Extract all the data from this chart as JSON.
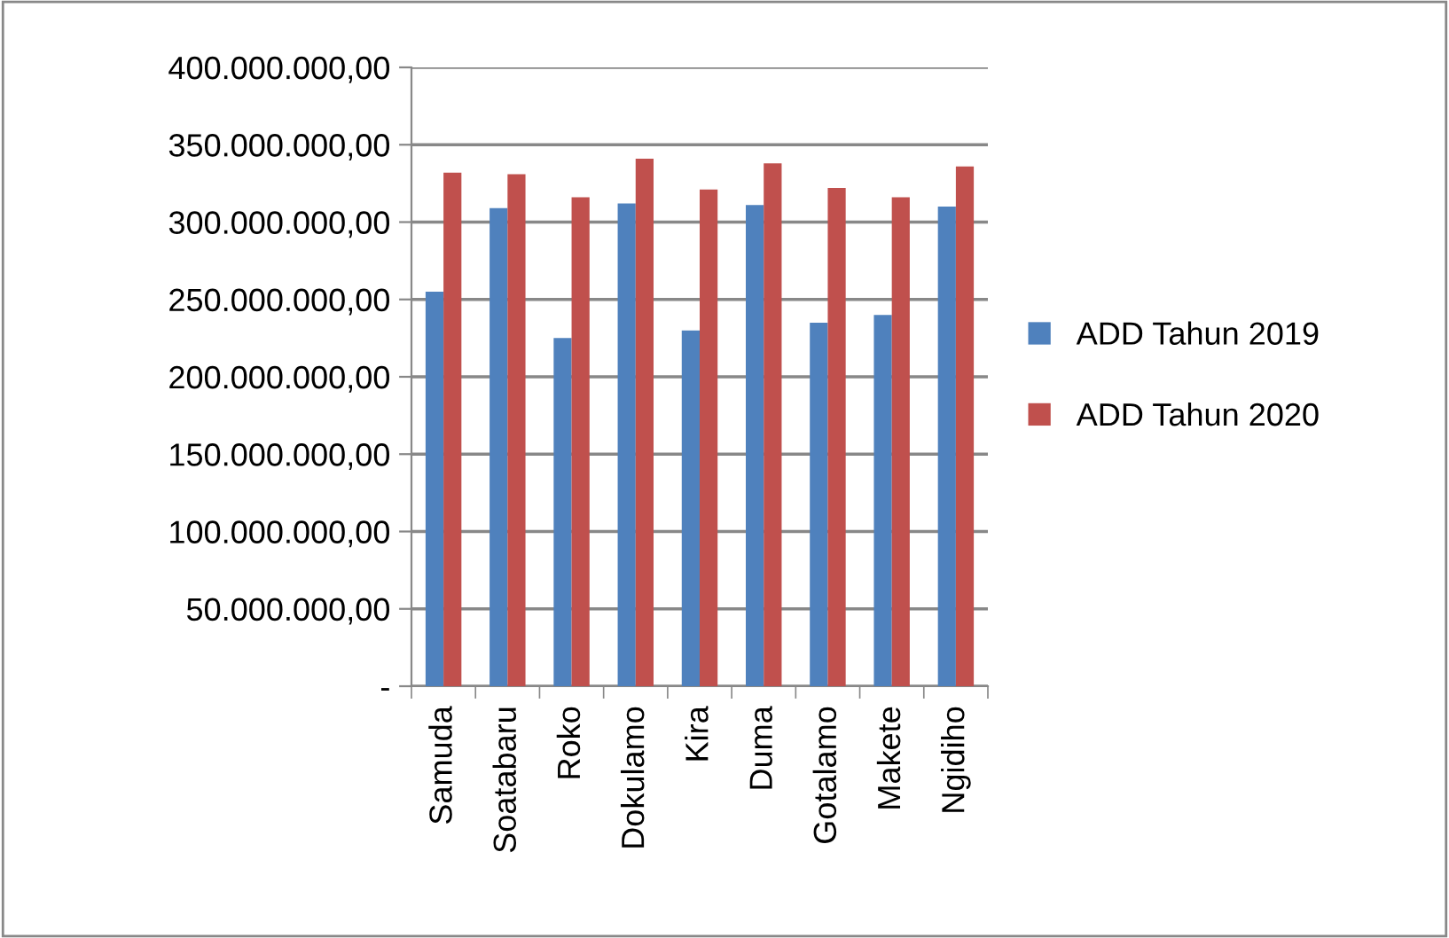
{
  "chart_data": {
    "type": "bar",
    "categories": [
      "Samuda",
      "Soatabaru",
      "Roko",
      "Dokulamo",
      "Kira",
      "Duma",
      "Gotalamo",
      "Makete",
      "Ngidiho"
    ],
    "series": [
      {
        "name": "ADD Tahun 2019",
        "color": "#4f81bd",
        "values": [
          255000000,
          309000000,
          225000000,
          312000000,
          230000000,
          311000000,
          235000000,
          240000000,
          310000000
        ]
      },
      {
        "name": "ADD Tahun 2020",
        "color": "#c0504d",
        "values": [
          332000000,
          331000000,
          316000000,
          341000000,
          321000000,
          338000000,
          322000000,
          316000000,
          336000000
        ]
      }
    ],
    "ylim": [
      0,
      400000000
    ],
    "yticks": [
      {
        "value": 0,
        "label": "-"
      },
      {
        "value": 50000000,
        "label": "50.000.000,00"
      },
      {
        "value": 100000000,
        "label": "100.000.000,00"
      },
      {
        "value": 150000000,
        "label": "150.000.000,00"
      },
      {
        "value": 200000000,
        "label": "200.000.000,00"
      },
      {
        "value": 250000000,
        "label": "250.000.000,00"
      },
      {
        "value": 300000000,
        "label": "300.000.000,00"
      },
      {
        "value": 350000000,
        "label": "350.000.000,00"
      },
      {
        "value": 400000000,
        "label": "400.000.000,00"
      }
    ],
    "grid": "y",
    "legend": "right"
  }
}
